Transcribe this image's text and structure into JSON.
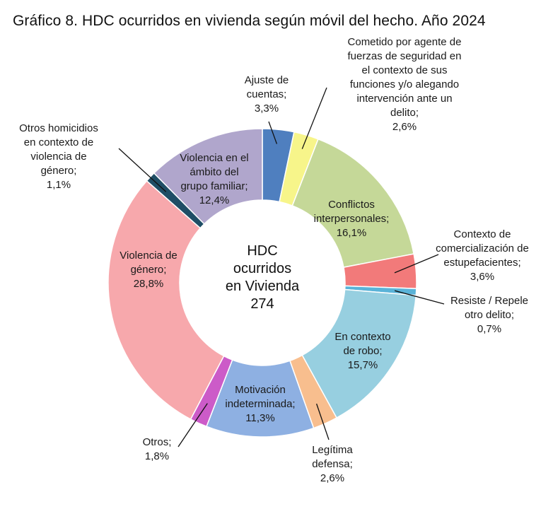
{
  "title": "Gráfico 8. HDC ocurridos en vivienda según móvil del hecho. Año 2024",
  "chart_data": {
    "type": "pie",
    "subtype": "donut",
    "title": "Gráfico 8. HDC ocurridos en vivienda según móvil del hecho. Año 2024",
    "center_label": [
      "HDC",
      "ocurridos",
      "en Vivienda",
      "274"
    ],
    "total": 274,
    "slices": [
      {
        "key": "ajuste",
        "label_lines": [
          "Ajuste de",
          "cuentas;"
        ],
        "value_text": "3,3%",
        "value": 3.3,
        "color": "#4f7fbf"
      },
      {
        "key": "agente",
        "label_lines": [
          "Cometido por agente de",
          "fuerzas de seguridad en",
          "el contexto de sus",
          "funciones y/o alegando",
          "intervención ante un",
          "delito;"
        ],
        "value_text": "2,6%",
        "value": 2.6,
        "color": "#f7f58a"
      },
      {
        "key": "conflictos",
        "label_lines": [
          "Conflictos",
          "interpersonales;"
        ],
        "value_text": "16,1%",
        "value": 16.1,
        "color": "#c5d898"
      },
      {
        "key": "estupefacientes",
        "label_lines": [
          "Contexto de",
          "comercialización de",
          "estupefacientes;"
        ],
        "value_text": "3,6%",
        "value": 3.6,
        "color": "#f27a7a"
      },
      {
        "key": "resiste",
        "label_lines": [
          "Resiste / Repele",
          "otro delito;"
        ],
        "value_text": "0,7%",
        "value": 0.7,
        "color": "#5ab3d8"
      },
      {
        "key": "robo",
        "label_lines": [
          "En contexto",
          "de robo;"
        ],
        "value_text": "15,7%",
        "value": 15.7,
        "color": "#97cfe0"
      },
      {
        "key": "legitima",
        "label_lines": [
          "Legítima",
          "defensa;"
        ],
        "value_text": "2,6%",
        "value": 2.6,
        "color": "#f8be8e"
      },
      {
        "key": "motivacion",
        "label_lines": [
          "Motivación",
          "indeterminada;"
        ],
        "value_text": "11,3%",
        "value": 11.3,
        "color": "#8eb0e2"
      },
      {
        "key": "otros",
        "label_lines": [
          "Otros;"
        ],
        "value_text": "1,8%",
        "value": 1.8,
        "color": "#cc5bc8"
      },
      {
        "key": "genero",
        "label_lines": [
          "Violencia de",
          "género;"
        ],
        "value_text": "28,8%",
        "value": 28.8,
        "color": "#f7a8ac"
      },
      {
        "key": "otros_hom",
        "label_lines": [
          "Otros homicidios",
          "en contexto de",
          "violencia de",
          "género;"
        ],
        "value_text": "1,1%",
        "value": 1.1,
        "color": "#1f4e66"
      },
      {
        "key": "familiar",
        "label_lines": [
          "Violencia en el",
          "ámbito del",
          "grupo familiar;"
        ],
        "value_text": "12,4%",
        "value": 12.4,
        "color": "#b0a6cc"
      }
    ]
  }
}
